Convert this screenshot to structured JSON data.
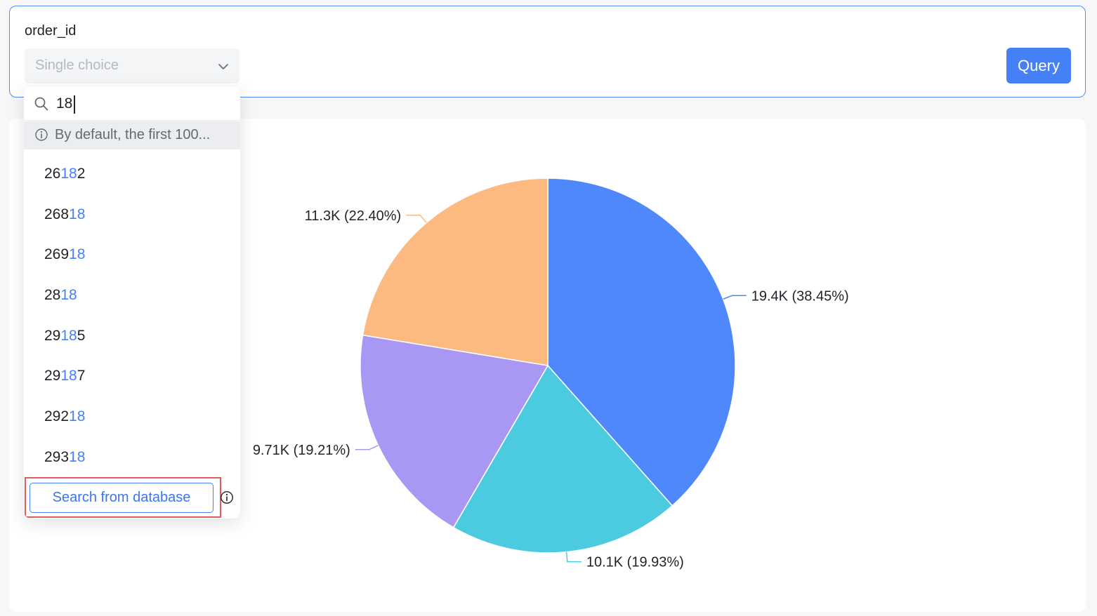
{
  "filter": {
    "label": "order_id",
    "select_placeholder": "Single choice",
    "query_label": "Query"
  },
  "dropdown": {
    "search_value": "18",
    "notice": "By default, the first 100...",
    "options": [
      {
        "pre": "26",
        "match": "18",
        "post": "2"
      },
      {
        "pre": "268",
        "match": "18",
        "post": ""
      },
      {
        "pre": "269",
        "match": "18",
        "post": ""
      },
      {
        "pre": "28",
        "match": "18",
        "post": ""
      },
      {
        "pre": "29",
        "match": "18",
        "post": "5"
      },
      {
        "pre": "29",
        "match": "18",
        "post": "7"
      },
      {
        "pre": "292",
        "match": "18",
        "post": ""
      },
      {
        "pre": "293",
        "match": "18",
        "post": ""
      }
    ],
    "search_db_label": "Search from database"
  },
  "icons": {
    "search": "search-icon",
    "info": "info-icon",
    "chevron": "chevron-down-icon"
  },
  "colors": {
    "accent": "#4580f6",
    "highlight_frame": "#e05d5a"
  },
  "chart_data": {
    "type": "pie",
    "start_angle_deg": 0,
    "slices": [
      {
        "label": "19.4K (38.45%)",
        "value": 19.4,
        "percent": 38.45,
        "color": "#4e88fb"
      },
      {
        "label": "10.1K (19.93%)",
        "value": 10.1,
        "percent": 19.93,
        "color": "#4ccadf"
      },
      {
        "label": "9.71K (19.21%)",
        "value": 9.71,
        "percent": 19.21,
        "color": "#a898f3"
      },
      {
        "label": "11.3K (22.40%)",
        "value": 11.3,
        "percent": 22.4,
        "color": "#fdba80"
      }
    ]
  }
}
